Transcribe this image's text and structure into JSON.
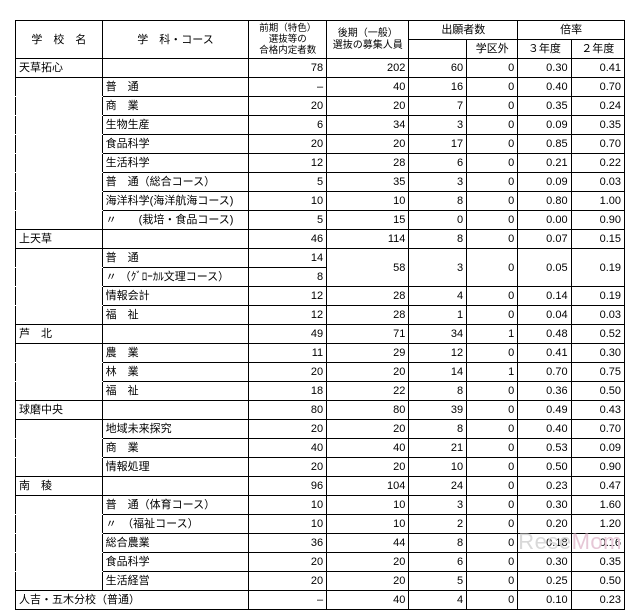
{
  "header": {
    "school": "学　校　名",
    "course": "学　科・コース",
    "col_a": "前期（特色）\n選抜等の\n合格内定者数",
    "col_b": "後期（一般）\n選抜の募集人員",
    "app_group": "出願者数",
    "app_sub": "学区外",
    "ratio_group": "倍率",
    "ratio_y3": "３年度",
    "ratio_y2": "２年度"
  },
  "colwidths": {
    "school": "78",
    "course": "132",
    "a": "70",
    "b": "74",
    "app": "52",
    "appout": "46",
    "r3": "48",
    "r2": "48"
  },
  "rows": [
    {
      "school": "天草拓心",
      "course": "",
      "a": "78",
      "b": "202",
      "app": "60",
      "out": "0",
      "r3": "0.30",
      "r2": "0.41",
      "schoolrow": true
    },
    {
      "school": "",
      "course": "普　通",
      "a": "–",
      "b": "40",
      "app": "16",
      "out": "0",
      "r3": "0.40",
      "r2": "0.70"
    },
    {
      "school": "",
      "course": "商　業",
      "a": "20",
      "b": "20",
      "app": "7",
      "out": "0",
      "r3": "0.35",
      "r2": "0.24"
    },
    {
      "school": "",
      "course": "生物生産",
      "a": "6",
      "b": "34",
      "app": "3",
      "out": "0",
      "r3": "0.09",
      "r2": "0.35"
    },
    {
      "school": "",
      "course": "食品科学",
      "a": "20",
      "b": "20",
      "app": "17",
      "out": "0",
      "r3": "0.85",
      "r2": "0.70"
    },
    {
      "school": "",
      "course": "生活科学",
      "a": "12",
      "b": "28",
      "app": "6",
      "out": "0",
      "r3": "0.21",
      "r2": "0.22"
    },
    {
      "school": "",
      "course": "普　通（総合コース）",
      "a": "5",
      "b": "35",
      "app": "3",
      "out": "0",
      "r3": "0.09",
      "r2": "0.03"
    },
    {
      "school": "",
      "course": "海洋科学(海洋航海コース)",
      "a": "10",
      "b": "10",
      "app": "8",
      "out": "0",
      "r3": "0.80",
      "r2": "1.00"
    },
    {
      "school": "",
      "course": "〃　　(栽培・食品コース)",
      "a": "5",
      "b": "15",
      "app": "0",
      "out": "0",
      "r3": "0.00",
      "r2": "0.90"
    },
    {
      "school": "上天草",
      "course": "",
      "a": "46",
      "b": "114",
      "app": "8",
      "out": "0",
      "r3": "0.07",
      "r2": "0.15",
      "schoolrow": true
    },
    {
      "school": "",
      "course": "普　通",
      "a": "14",
      "b": "",
      "app": "",
      "out": "",
      "r3": "",
      "r2": "",
      "mergeDown": true
    },
    {
      "school": "",
      "course": "〃 （ｸﾞﾛｰｶﾙ文理コース）",
      "a": "8",
      "b": "58",
      "app": "3",
      "out": "0",
      "r3": "0.05",
      "r2": "0.19",
      "mergedTail": true
    },
    {
      "school": "",
      "course": "情報会計",
      "a": "12",
      "b": "28",
      "app": "4",
      "out": "0",
      "r3": "0.14",
      "r2": "0.19"
    },
    {
      "school": "",
      "course": "福　祉",
      "a": "12",
      "b": "28",
      "app": "1",
      "out": "0",
      "r3": "0.04",
      "r2": "0.03"
    },
    {
      "school": "芦　北",
      "course": "",
      "a": "49",
      "b": "71",
      "app": "34",
      "out": "1",
      "r3": "0.48",
      "r2": "0.52",
      "schoolrow": true
    },
    {
      "school": "",
      "course": "農　業",
      "a": "11",
      "b": "29",
      "app": "12",
      "out": "0",
      "r3": "0.41",
      "r2": "0.30"
    },
    {
      "school": "",
      "course": "林　業",
      "a": "20",
      "b": "20",
      "app": "14",
      "out": "1",
      "r3": "0.70",
      "r2": "0.75"
    },
    {
      "school": "",
      "course": "福　祉",
      "a": "18",
      "b": "22",
      "app": "8",
      "out": "0",
      "r3": "0.36",
      "r2": "0.50"
    },
    {
      "school": "球磨中央",
      "course": "",
      "a": "80",
      "b": "80",
      "app": "39",
      "out": "0",
      "r3": "0.49",
      "r2": "0.43",
      "schoolrow": true
    },
    {
      "school": "",
      "course": "地域未来探究",
      "a": "20",
      "b": "20",
      "app": "8",
      "out": "0",
      "r3": "0.40",
      "r2": "0.70"
    },
    {
      "school": "",
      "course": "商　業",
      "a": "40",
      "b": "40",
      "app": "21",
      "out": "0",
      "r3": "0.53",
      "r2": "0.09"
    },
    {
      "school": "",
      "course": "情報処理",
      "a": "20",
      "b": "20",
      "app": "10",
      "out": "0",
      "r3": "0.50",
      "r2": "0.90"
    },
    {
      "school": "南　稜",
      "course": "",
      "a": "96",
      "b": "104",
      "app": "24",
      "out": "0",
      "r3": "0.23",
      "r2": "0.47",
      "schoolrow": true
    },
    {
      "school": "",
      "course": "普　通（体育コース）",
      "a": "10",
      "b": "10",
      "app": "3",
      "out": "0",
      "r3": "0.30",
      "r2": "1.60"
    },
    {
      "school": "",
      "course": "〃　（福祉コース）",
      "a": "10",
      "b": "10",
      "app": "2",
      "out": "0",
      "r3": "0.20",
      "r2": "1.20"
    },
    {
      "school": "",
      "course": "総合農業",
      "a": "36",
      "b": "44",
      "app": "8",
      "out": "0",
      "r3": "0.18",
      "r2": "0.16"
    },
    {
      "school": "",
      "course": "食品科学",
      "a": "20",
      "b": "20",
      "app": "6",
      "out": "0",
      "r3": "0.30",
      "r2": "0.35"
    },
    {
      "school": "",
      "course": "生活経営",
      "a": "20",
      "b": "20",
      "app": "5",
      "out": "0",
      "r3": "0.25",
      "r2": "0.50"
    },
    {
      "school": "人吉・五木分校（普通）",
      "course": "",
      "a": "–",
      "b": "40",
      "app": "4",
      "out": "0",
      "r3": "0.10",
      "r2": "0.23",
      "schoolrow": true,
      "single": true
    }
  ],
  "watermark": "ReseMom"
}
